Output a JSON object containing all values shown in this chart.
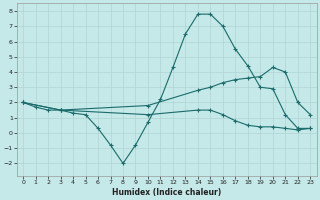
{
  "xlabel": "Humidex (Indice chaleur)",
  "xlim": [
    -0.5,
    23.5
  ],
  "ylim": [
    -2.8,
    8.5
  ],
  "xticks": [
    0,
    1,
    2,
    3,
    4,
    5,
    6,
    7,
    8,
    9,
    10,
    11,
    12,
    13,
    14,
    15,
    16,
    17,
    18,
    19,
    20,
    21,
    22,
    23
  ],
  "yticks": [
    -2,
    -1,
    0,
    1,
    2,
    3,
    4,
    5,
    6,
    7,
    8
  ],
  "bg_color": "#c5e8e8",
  "grid_color": "#b0d4d4",
  "line_color": "#1a6b6b",
  "series": [
    {
      "x": [
        0,
        1,
        2,
        3,
        4,
        5,
        6,
        7,
        8,
        9,
        10,
        11,
        12,
        13,
        14,
        15,
        16,
        17,
        18,
        19,
        20,
        21,
        22,
        23
      ],
      "y": [
        2,
        1.7,
        1.5,
        1.5,
        1.3,
        1.2,
        0.3,
        -0.8,
        -2.0,
        -0.8,
        0.7,
        2.2,
        4.3,
        6.5,
        7.8,
        7.8,
        7.0,
        5.5,
        4.4,
        3.0,
        2.9,
        1.2,
        0.3,
        0.3
      ]
    },
    {
      "x": [
        0,
        3,
        10,
        14,
        15,
        16,
        17,
        18,
        19,
        20,
        21,
        22,
        23
      ],
      "y": [
        2,
        1.5,
        1.8,
        2.8,
        3.0,
        3.3,
        3.5,
        3.6,
        3.7,
        4.3,
        4.0,
        2.0,
        1.2
      ]
    },
    {
      "x": [
        0,
        3,
        10,
        14,
        15,
        16,
        17,
        18,
        19,
        20,
        21,
        22,
        23
      ],
      "y": [
        2,
        1.5,
        1.2,
        1.5,
        1.5,
        1.2,
        0.8,
        0.5,
        0.4,
        0.4,
        0.3,
        0.2,
        0.3
      ]
    }
  ]
}
